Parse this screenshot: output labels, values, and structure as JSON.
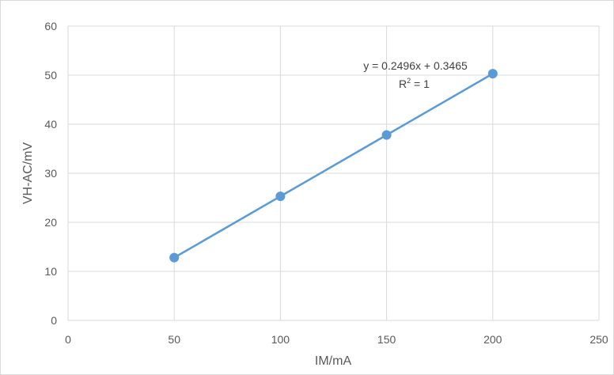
{
  "chart_data": {
    "type": "scatter",
    "xlabel": "IM/mA",
    "ylabel": "VH-AC/mV",
    "xlim": [
      0,
      250
    ],
    "ylim": [
      0,
      60
    ],
    "x_ticks": [
      0,
      50,
      100,
      150,
      200,
      250
    ],
    "y_ticks": [
      0,
      10,
      20,
      30,
      40,
      50,
      60
    ],
    "grid": "vertical and horizontal",
    "series": [
      {
        "x": [
          50,
          100,
          150,
          200
        ],
        "y": [
          12.8,
          25.3,
          37.8,
          50.3
        ],
        "color": "#5b9bd5"
      }
    ],
    "trendline": {
      "equation": "y = 0.2496x + 0.3465",
      "r2_prefix": "R",
      "r2_exponent": "2",
      "r2_value": " = 1"
    }
  }
}
